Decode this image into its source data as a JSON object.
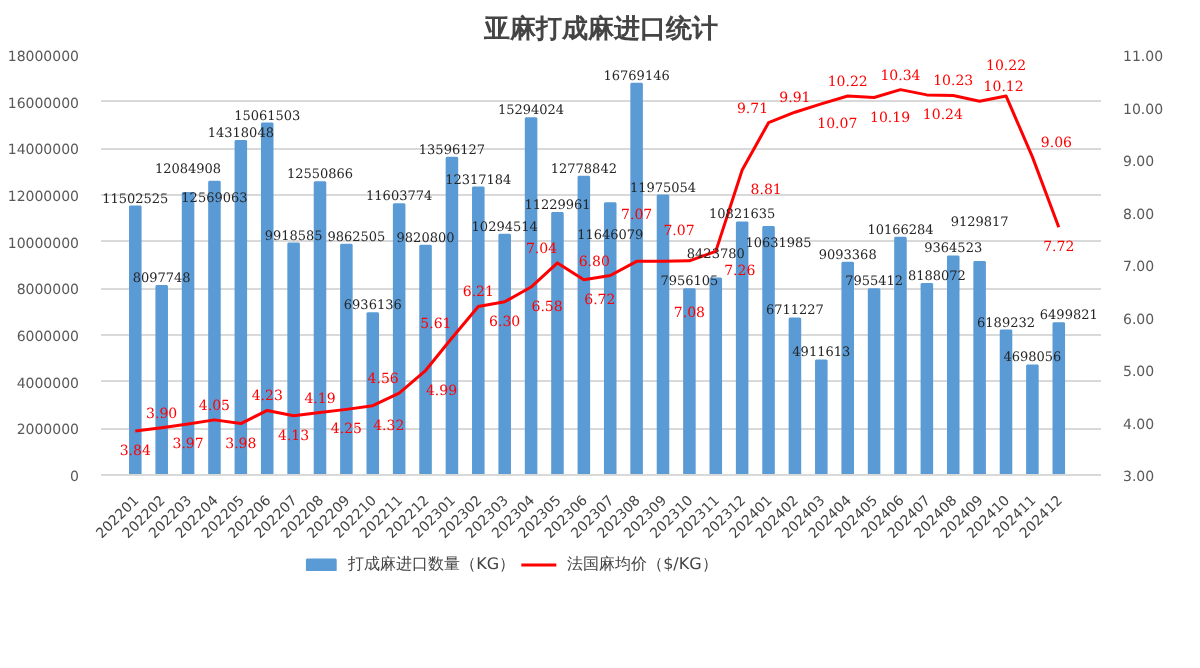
{
  "chart_data": {
    "type": "bar",
    "title": "亚麻打成麻进口统计",
    "categories": [
      "202201",
      "202202",
      "202203",
      "202204",
      "202205",
      "202206",
      "202207",
      "202208",
      "202209",
      "202210",
      "202211",
      "202212",
      "202301",
      "202302",
      "202303",
      "202304",
      "202305",
      "202306",
      "202307",
      "202308",
      "202309",
      "202310",
      "202311",
      "202312",
      "202401",
      "202402",
      "202403",
      "202404",
      "202405",
      "202406",
      "202407",
      "202408",
      "202409",
      "202410",
      "202411",
      "202412"
    ],
    "series": [
      {
        "name": "打成麻进口数量（KG）",
        "color": "#5b9bd5",
        "values": [
          11502525,
          8097748,
          12084908,
          12569063,
          14318048,
          15061503,
          9918585,
          12550866,
          9862505,
          6936136,
          11603774,
          9820800,
          13596127,
          12317184,
          10294514,
          15294024,
          11229961,
          12778842,
          11646079,
          16769146,
          11975054,
          7956105,
          8423780,
          10821635,
          10631985,
          6711227,
          4911613,
          9093368,
          7955412,
          10166284,
          8188072,
          9364523,
          9129817,
          6189232,
          4698056,
          6499821
        ],
        "value_labels": [
          "11502525",
          "8097748",
          "12084908",
          "12569063",
          "14318048",
          "15061503",
          "9918585",
          "12550866",
          "9862505",
          "6936136",
          "11603774",
          "9820800",
          "13596127",
          "12317184",
          "10294514",
          "15294024",
          "11229961",
          "12778842",
          "11646079",
          "16769146",
          "11975054",
          "7956105",
          "8423780",
          "10821635",
          "10631985",
          "6711227",
          "4911613",
          "9093368",
          "7955412",
          "10166284",
          "8188072",
          "9364523",
          "9129817",
          "6189232",
          "4698056",
          "6499821"
        ]
      },
      {
        "name": "法国麻均价（$/KG）",
        "type": "line",
        "axis": "y2",
        "color": "#ff0000",
        "values": [
          3.84,
          3.9,
          3.97,
          4.05,
          3.98,
          4.23,
          4.13,
          4.19,
          4.25,
          4.32,
          4.56,
          4.99,
          5.61,
          6.21,
          6.3,
          6.58,
          7.04,
          6.72,
          6.8,
          7.07,
          7.07,
          7.08,
          7.26,
          8.81,
          9.71,
          9.91,
          10.07,
          10.22,
          10.19,
          10.34,
          10.24,
          10.23,
          10.12,
          10.22,
          9.06,
          7.72
        ],
        "value_labels": [
          "3.84",
          "3.90",
          "3.97",
          "4.05",
          "3.98",
          "4.23",
          "4.13",
          "4.19",
          "4.25",
          "4.32",
          "4.56",
          "4.99",
          "5.61",
          "6.21",
          "6.30",
          "6.58",
          "7.04",
          "6.72",
          "6.80",
          "7.07",
          "7.07",
          "7.08",
          "7.26",
          "8.81",
          "9.71",
          "9.91",
          "10.07",
          "10.22",
          "10.19",
          "10.34",
          "10.24",
          "10.23",
          "10.12",
          "10.22",
          "9.06",
          "7.72"
        ]
      }
    ],
    "ylim": [
      0,
      18000000
    ],
    "yticks": [
      0,
      2000000,
      4000000,
      6000000,
      8000000,
      10000000,
      12000000,
      14000000,
      16000000,
      18000000
    ],
    "y2lim": [
      3,
      11
    ],
    "y2ticks": [
      {
        "value": 3,
        "label": "3.00"
      },
      {
        "value": 4,
        "label": "4.00"
      },
      {
        "value": 5,
        "label": "5.00"
      },
      {
        "value": 6,
        "label": "6.00"
      },
      {
        "value": 7,
        "label": "7.00"
      },
      {
        "value": 8,
        "label": "8.00"
      },
      {
        "value": 9,
        "label": "9.00"
      },
      {
        "value": 10,
        "label": "10.00"
      },
      {
        "value": 11,
        "label": "11.00"
      }
    ],
    "grid": "y",
    "legend": "bottom",
    "marker": "none",
    "line_style": "solid"
  }
}
